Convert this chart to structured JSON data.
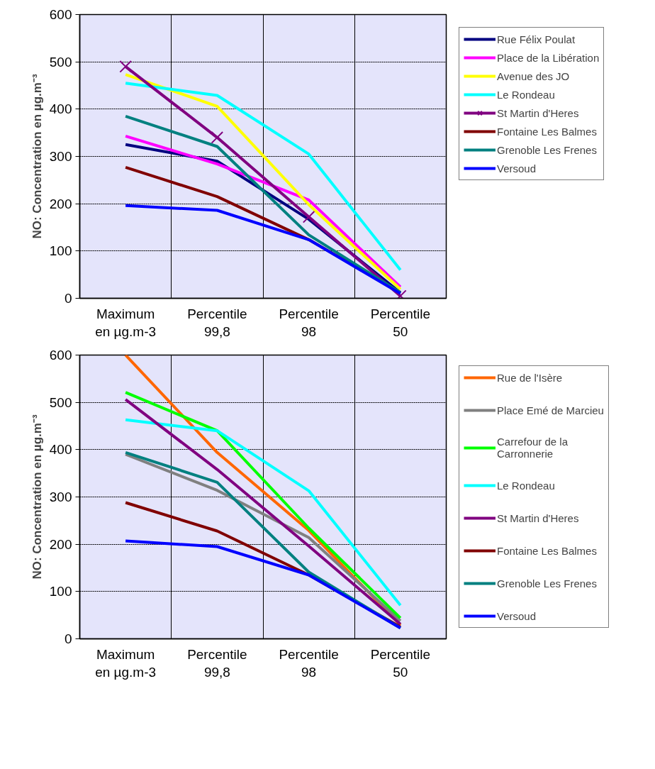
{
  "chart_data": [
    {
      "type": "line",
      "ylabel": "NO: Concentration en µg.m⁻³",
      "categories": [
        "Maximum\nen µg.m-3",
        "Percentile\n99,8",
        "Percentile\n98",
        "Percentile\n50"
      ],
      "ylim": [
        0,
        600
      ],
      "yticks": [
        0,
        100,
        200,
        300,
        400,
        500,
        600
      ],
      "grid": true,
      "legend": "right",
      "marker": "none",
      "line_style": "solid",
      "series": [
        {
          "name": "Rue Félix Poulat",
          "color": "#000080",
          "values": [
            325,
            290,
            167,
            12
          ]
        },
        {
          "name": "Place de la Libération",
          "color": "#ff00ff",
          "values": [
            343,
            284,
            208,
            24
          ]
        },
        {
          "name": "Avenue des JO",
          "color": "#ffff00",
          "values": [
            473,
            406,
            198,
            19
          ]
        },
        {
          "name": "Le Rondeau",
          "color": "#00ffff",
          "values": [
            455,
            429,
            305,
            60
          ]
        },
        {
          "name": "St Martin d'Heres",
          "color": "#800080",
          "marker": "cross",
          "values": [
            490,
            340,
            172,
            5
          ]
        },
        {
          "name": "Fontaine Les Balmes",
          "color": "#800000",
          "values": [
            277,
            215,
            124,
            12
          ]
        },
        {
          "name": "Grenoble Les Frenes",
          "color": "#008080",
          "values": [
            385,
            321,
            134,
            12
          ]
        },
        {
          "name": "Versoud",
          "color": "#0000ff",
          "values": [
            196,
            186,
            124,
            10
          ]
        }
      ]
    },
    {
      "type": "line",
      "ylabel": "NO: Concentration en µg.m⁻³",
      "categories": [
        "Maximum\nen µg.m-3",
        "Percentile\n99,8",
        "Percentile\n98",
        "Percentile\n50"
      ],
      "ylim": [
        0,
        600
      ],
      "yticks": [
        0,
        100,
        200,
        300,
        400,
        500,
        600
      ],
      "grid": true,
      "legend": "right",
      "marker": "none",
      "line_style": "solid",
      "series": [
        {
          "name": "Rue de l'Isère",
          "color": "#ff6600",
          "values": [
            600,
            394,
            229,
            29
          ]
        },
        {
          "name": "Place Emé de Marcieu",
          "color": "#808080",
          "values": [
            390,
            314,
            214,
            38
          ]
        },
        {
          "name": "Carrefour de la\nCarronnerie",
          "color": "#00ff00",
          "values": [
            521,
            440,
            234,
            44
          ]
        },
        {
          "name": "Le Rondeau",
          "color": "#00ffff",
          "values": [
            463,
            440,
            313,
            71
          ]
        },
        {
          "name": "St Martin d'Heres",
          "color": "#800080",
          "values": [
            506,
            358,
            196,
            31
          ]
        },
        {
          "name": "Fontaine Les Balmes",
          "color": "#800000",
          "values": [
            288,
            228,
            135,
            25
          ]
        },
        {
          "name": "Grenoble Les Frenes",
          "color": "#008080",
          "values": [
            394,
            331,
            141,
            23
          ]
        },
        {
          "name": "Versoud",
          "color": "#0000ff",
          "values": [
            207,
            195,
            135,
            23
          ]
        }
      ]
    }
  ]
}
